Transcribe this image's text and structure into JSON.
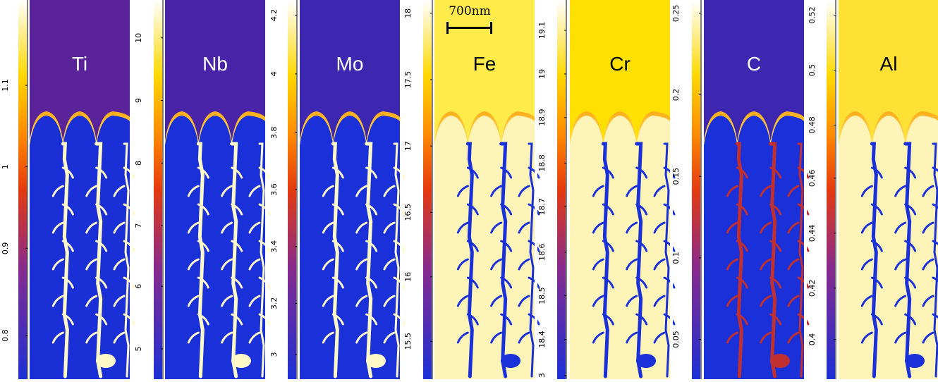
{
  "panels": [
    {
      "element": "Ti",
      "ticks": [
        "0.8",
        "0.9",
        "1",
        "1.1"
      ],
      "tick_pos": [
        0.885,
        0.655,
        0.44,
        0.225
      ],
      "top": "#5a239a",
      "matrix": "#1b2fd6",
      "fill": "#fff9c8",
      "label_color": "#ffffff"
    },
    {
      "element": "Nb",
      "ticks": [
        "5",
        "6",
        "7",
        "8",
        "9",
        "10"
      ],
      "tick_pos": [
        0.92,
        0.755,
        0.595,
        0.43,
        0.265,
        0.1
      ],
      "top": "#4a24a8",
      "matrix": "#1a30d8",
      "fill": "#fff9c8",
      "label_color": "#ffffff"
    },
    {
      "element": "Mo",
      "ticks": [
        "3",
        "3.2",
        "3.4",
        "3.6",
        "3.8",
        "4",
        "4.2"
      ],
      "tick_pos": [
        0.935,
        0.8,
        0.65,
        0.5,
        0.35,
        0.195,
        0.04
      ],
      "top": "#3d26b0",
      "matrix": "#1a30d8",
      "fill": "#fff9c8",
      "label_color": "#ffffff"
    },
    {
      "element": "Fe",
      "ticks": [
        "15.5",
        "16",
        "16.5",
        "17",
        "17.5",
        "18"
      ],
      "tick_pos": [
        0.9,
        0.73,
        0.56,
        0.385,
        0.21,
        0.035
      ],
      "top": "#ffec4a",
      "matrix": "#fff4b8",
      "fill": "#1a30d8",
      "label_color": "#000000"
    },
    {
      "element": "Cr",
      "ticks": [
        "3",
        "18.4",
        "18.5",
        "18.6",
        "18.7",
        "18.8",
        "18.9",
        "19",
        "19.1"
      ],
      "tick_pos": [
        0.99,
        0.895,
        0.78,
        0.665,
        0.545,
        0.43,
        0.31,
        0.195,
        0.08
      ],
      "top": "#ffe000",
      "matrix": "#fff4b8",
      "fill": "#1a30d8",
      "label_color": "#000000"
    },
    {
      "element": "C",
      "ticks": [
        "0.05",
        "0.1",
        "0.15",
        "0.2",
        "0.25"
      ],
      "tick_pos": [
        0.895,
        0.68,
        0.465,
        0.25,
        0.035
      ],
      "top": "#3d26b0",
      "matrix": "#1a30d8",
      "fill": "#c03030",
      "label_color": "#ffffff"
    },
    {
      "element": "Al",
      "ticks": [
        "0.4",
        "0.42",
        "0.44",
        "0.46",
        "0.48",
        "0.5",
        "0.52"
      ],
      "tick_pos": [
        0.895,
        0.76,
        0.615,
        0.47,
        0.33,
        0.185,
        0.04
      ],
      "top": "#ffe135",
      "matrix": "#fff4b8",
      "fill": "#1a30d8",
      "label_color": "#000000"
    }
  ],
  "scale_bar": {
    "label": "700nm"
  }
}
